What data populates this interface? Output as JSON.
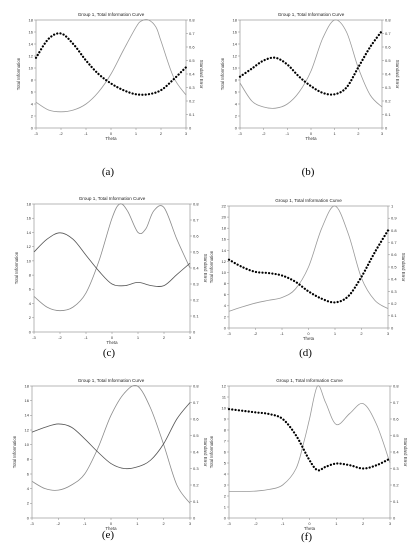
{
  "figure": {
    "panels": [
      {
        "label": "(a)",
        "title": "Group 1, Total Information Curve",
        "xlabel": "Theta",
        "ylabel_left": "Total Information",
        "ylabel_right": "Standard Error",
        "chart_data": {
          "type": "line",
          "x_range": [
            -3,
            3
          ],
          "y_left_range": [
            0,
            18
          ],
          "y_right_range": [
            0,
            0.8
          ],
          "x_ticks": [
            -3,
            -2,
            -1,
            0,
            1,
            2,
            3
          ],
          "y_left_ticks": [
            0,
            2,
            4,
            6,
            8,
            10,
            12,
            14,
            16,
            18
          ],
          "y_right_ticks": [
            0,
            0.1,
            0.2,
            0.3,
            0.4,
            0.5,
            0.6,
            0.7,
            0.8
          ],
          "series": [
            {
              "axis": "left",
              "style": "solid",
              "color": "#9a9a9a",
              "x": [
                -3,
                -2.5,
                -2,
                -1.5,
                -1,
                -0.5,
                0,
                0.5,
                1,
                1.2,
                1.5,
                1.8,
                2,
                2.5,
                3
              ],
              "y": [
                4.3,
                3.0,
                2.7,
                3.0,
                4.0,
                6.0,
                9.0,
                13.0,
                16.8,
                17.8,
                18.0,
                16.8,
                14.5,
                8.5,
                5.5
              ]
            },
            {
              "axis": "right",
              "style": "dotted",
              "color": "#000000",
              "x": [
                -3,
                -2.5,
                -2,
                -1.5,
                -1,
                -0.5,
                0,
                0.5,
                1,
                1.5,
                2,
                2.5,
                3
              ],
              "y": [
                0.52,
                0.66,
                0.7,
                0.62,
                0.5,
                0.4,
                0.33,
                0.28,
                0.25,
                0.25,
                0.28,
                0.36,
                0.45
              ]
            }
          ]
        }
      },
      {
        "label": "(b)",
        "title": "Group 1, Total Information Curve",
        "xlabel": "Theta",
        "ylabel_left": "Total Information",
        "ylabel_right": "Standard Error",
        "chart_data": {
          "type": "line",
          "x_range": [
            -3,
            3
          ],
          "y_left_range": [
            0,
            18
          ],
          "y_right_range": [
            0,
            0.8
          ],
          "x_ticks": [
            -3,
            -2,
            -1,
            0,
            1,
            2,
            3
          ],
          "y_left_ticks": [
            0,
            2,
            4,
            6,
            8,
            10,
            12,
            14,
            16,
            18
          ],
          "y_right_ticks": [
            0,
            0.1,
            0.2,
            0.3,
            0.4,
            0.5,
            0.6,
            0.7,
            0.8
          ],
          "series": [
            {
              "axis": "left",
              "style": "solid",
              "color": "#9a9a9a",
              "x": [
                -3,
                -2.5,
                -2,
                -1.5,
                -1,
                -0.5,
                0,
                0.5,
                1,
                1.5,
                2,
                2.5,
                3
              ],
              "y": [
                7.5,
                4.5,
                3.5,
                3.3,
                4.0,
                6.0,
                9.5,
                15.0,
                18.0,
                16.0,
                10.0,
                5.5,
                3.5
              ]
            },
            {
              "axis": "right",
              "style": "dotted",
              "color": "#000000",
              "x": [
                -3,
                -2.5,
                -2,
                -1.5,
                -1,
                -0.5,
                0,
                0.5,
                1,
                1.5,
                2,
                2.5,
                3
              ],
              "y": [
                0.38,
                0.44,
                0.5,
                0.52,
                0.47,
                0.38,
                0.31,
                0.26,
                0.25,
                0.3,
                0.45,
                0.6,
                0.72
              ]
            }
          ]
        }
      },
      {
        "label": "(c)",
        "title": "Group 1, Total Information Curve",
        "xlabel": "Theta",
        "ylabel_left": "Total Information",
        "ylabel_right": "Standard Error",
        "chart_data": {
          "type": "line",
          "x_range": [
            -3,
            3
          ],
          "y_left_range": [
            0,
            18
          ],
          "y_right_range": [
            0,
            0.8
          ],
          "x_ticks": [
            -3,
            -2,
            -1,
            0,
            1,
            2,
            3
          ],
          "y_left_ticks": [
            0,
            2,
            4,
            6,
            8,
            10,
            12,
            14,
            16,
            18
          ],
          "y_right_ticks": [
            0,
            0.1,
            0.2,
            0.3,
            0.4,
            0.5,
            0.6,
            0.7,
            0.8
          ],
          "series": [
            {
              "axis": "left",
              "style": "solid",
              "color": "#8c8c8c",
              "x": [
                -3,
                -2.5,
                -2,
                -1.5,
                -1,
                -0.5,
                0,
                0.3,
                0.6,
                1,
                1.3,
                1.6,
                2,
                2.5,
                3
              ],
              "y": [
                5.0,
                3.5,
                3.0,
                3.5,
                5.5,
                10.0,
                16.0,
                18.0,
                17.0,
                14.0,
                14.5,
                17.0,
                17.5,
                13.0,
                9.0
              ]
            },
            {
              "axis": "right",
              "style": "solid",
              "color": "#555555",
              "x": [
                -3,
                -2.5,
                -2,
                -1.5,
                -1,
                -0.5,
                0,
                0.5,
                1,
                1.5,
                2,
                2.5,
                3
              ],
              "y": [
                0.5,
                0.58,
                0.62,
                0.58,
                0.48,
                0.38,
                0.3,
                0.29,
                0.31,
                0.29,
                0.29,
                0.36,
                0.43
              ]
            }
          ]
        }
      },
      {
        "label": "(d)",
        "title": "Group 1, Total Information Curve",
        "xlabel": "Theta",
        "ylabel_left": "Total Information",
        "ylabel_right": "Standard Error",
        "chart_data": {
          "type": "line",
          "x_range": [
            -3,
            3
          ],
          "y_left_range": [
            0,
            22
          ],
          "y_right_range": [
            0,
            1.0
          ],
          "x_ticks": [
            -3,
            -2,
            -1,
            0,
            1,
            2,
            3
          ],
          "y_left_ticks": [
            0,
            2,
            4,
            6,
            8,
            10,
            12,
            14,
            16,
            18,
            20,
            22
          ],
          "y_right_ticks": [
            0,
            0.1,
            0.2,
            0.3,
            0.4,
            0.5,
            0.6,
            0.7,
            0.8,
            0.9,
            1.0
          ],
          "series": [
            {
              "axis": "left",
              "style": "solid",
              "color": "#9a9a9a",
              "x": [
                -3,
                -2.5,
                -2,
                -1.5,
                -1,
                -0.5,
                0,
                0.5,
                1,
                1.5,
                2,
                2.5,
                3
              ],
              "y": [
                3.0,
                3.8,
                4.5,
                5.0,
                5.5,
                7.0,
                11.0,
                18.0,
                22.0,
                17.0,
                9.0,
                5.0,
                3.5
              ]
            },
            {
              "axis": "right",
              "style": "dotted",
              "color": "#000000",
              "x": [
                -3,
                -2.5,
                -2,
                -1.5,
                -1,
                -0.5,
                0,
                0.5,
                1,
                1.5,
                2,
                2.5,
                3
              ],
              "y": [
                0.56,
                0.5,
                0.46,
                0.45,
                0.43,
                0.38,
                0.3,
                0.24,
                0.21,
                0.26,
                0.42,
                0.62,
                0.8
              ]
            }
          ]
        }
      },
      {
        "label": "(e)",
        "title": "Group 1, Total Information Curve",
        "xlabel": "Theta",
        "ylabel_left": "Total Information",
        "ylabel_right": "Standard Error",
        "chart_data": {
          "type": "line",
          "x_range": [
            -3,
            3
          ],
          "y_left_range": [
            0,
            18
          ],
          "y_right_range": [
            0,
            0.8
          ],
          "x_ticks": [
            -3,
            -2,
            -1,
            0,
            1,
            2,
            3
          ],
          "y_left_ticks": [
            0,
            2,
            4,
            6,
            8,
            10,
            12,
            14,
            16,
            18
          ],
          "y_right_ticks": [
            0,
            0.1,
            0.2,
            0.3,
            0.4,
            0.5,
            0.6,
            0.7,
            0.8
          ],
          "series": [
            {
              "axis": "left",
              "style": "solid",
              "color": "#8c8c8c",
              "x": [
                -3,
                -2.5,
                -2,
                -1.5,
                -1,
                -0.5,
                0,
                0.5,
                1,
                1.5,
                2,
                2.5,
                3
              ],
              "y": [
                5.0,
                4.0,
                3.8,
                4.5,
                6.0,
                9.5,
                14.0,
                17.0,
                18.0,
                15.0,
                10.0,
                4.5,
                2.0
              ]
            },
            {
              "axis": "right",
              "style": "solid",
              "color": "#555555",
              "x": [
                -3,
                -2.5,
                -2,
                -1.5,
                -1,
                -0.5,
                0,
                0.5,
                1,
                1.5,
                2,
                2.5,
                3
              ],
              "y": [
                0.52,
                0.55,
                0.57,
                0.55,
                0.48,
                0.4,
                0.33,
                0.3,
                0.31,
                0.35,
                0.45,
                0.6,
                0.7
              ]
            }
          ]
        }
      },
      {
        "label": "(f)",
        "title": "Group 1, Total Information Curve",
        "xlabel": "Theta",
        "ylabel_left": "Total Information",
        "ylabel_right": "Standard Error",
        "chart_data": {
          "type": "line",
          "x_range": [
            -3,
            3
          ],
          "y_left_range": [
            0,
            12
          ],
          "y_right_range": [
            0,
            0.8
          ],
          "x_ticks": [
            -3,
            -2,
            -1,
            0,
            1,
            2,
            3
          ],
          "y_left_ticks": [
            0,
            1,
            2,
            3,
            4,
            5,
            6,
            7,
            8,
            9,
            10,
            11,
            12
          ],
          "y_right_ticks": [
            0,
            0.1,
            0.2,
            0.3,
            0.4,
            0.5,
            0.6,
            0.7,
            0.8
          ],
          "series": [
            {
              "axis": "left",
              "style": "solid",
              "color": "#9a9a9a",
              "x": [
                -3,
                -2.5,
                -2,
                -1.5,
                -1,
                -0.5,
                -0.2,
                0,
                0.3,
                0.6,
                1,
                1.5,
                2,
                2.5,
                3
              ],
              "y": [
                2.4,
                2.4,
                2.45,
                2.6,
                3.0,
                4.5,
                7.0,
                9.0,
                12.0,
                10.5,
                8.5,
                9.5,
                10.4,
                8.5,
                5.0
              ]
            },
            {
              "axis": "right",
              "style": "dotted",
              "color": "#000000",
              "x": [
                -3,
                -2.5,
                -2,
                -1.5,
                -1,
                -0.5,
                0,
                0.3,
                0.6,
                1,
                1.5,
                2,
                2.5,
                3
              ],
              "y": [
                0.66,
                0.65,
                0.64,
                0.63,
                0.6,
                0.5,
                0.35,
                0.29,
                0.31,
                0.33,
                0.32,
                0.3,
                0.32,
                0.36
              ]
            }
          ]
        }
      }
    ]
  }
}
